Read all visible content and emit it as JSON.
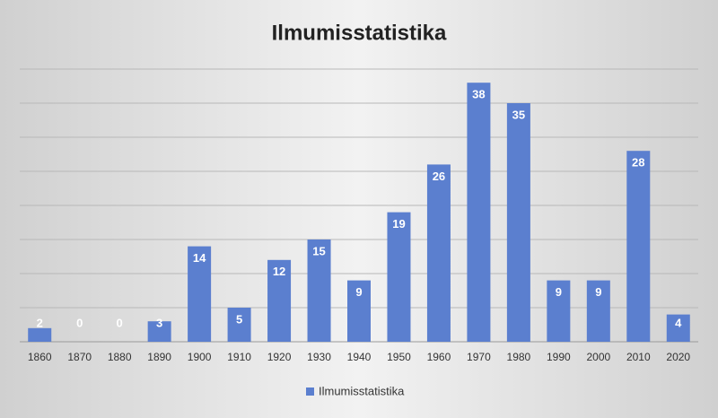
{
  "chart_data": {
    "type": "bar",
    "title": "Ilmumisstatistika",
    "categories": [
      "1860",
      "1870",
      "1880",
      "1890",
      "1900",
      "1910",
      "1920",
      "1930",
      "1940",
      "1950",
      "1960",
      "1970",
      "1980",
      "1990",
      "2000",
      "2010",
      "2020"
    ],
    "series": [
      {
        "name": "Ilmumisstatistika",
        "color": "#5b7fcf",
        "values": [
          2,
          0,
          0,
          3,
          14,
          5,
          12,
          15,
          9,
          19,
          26,
          38,
          35,
          9,
          9,
          28,
          4
        ]
      }
    ],
    "ylim": [
      0,
      40
    ],
    "yticks": [
      0,
      5,
      10,
      15,
      20,
      25,
      30,
      35,
      40
    ],
    "grid": true,
    "legend": "bottom"
  }
}
